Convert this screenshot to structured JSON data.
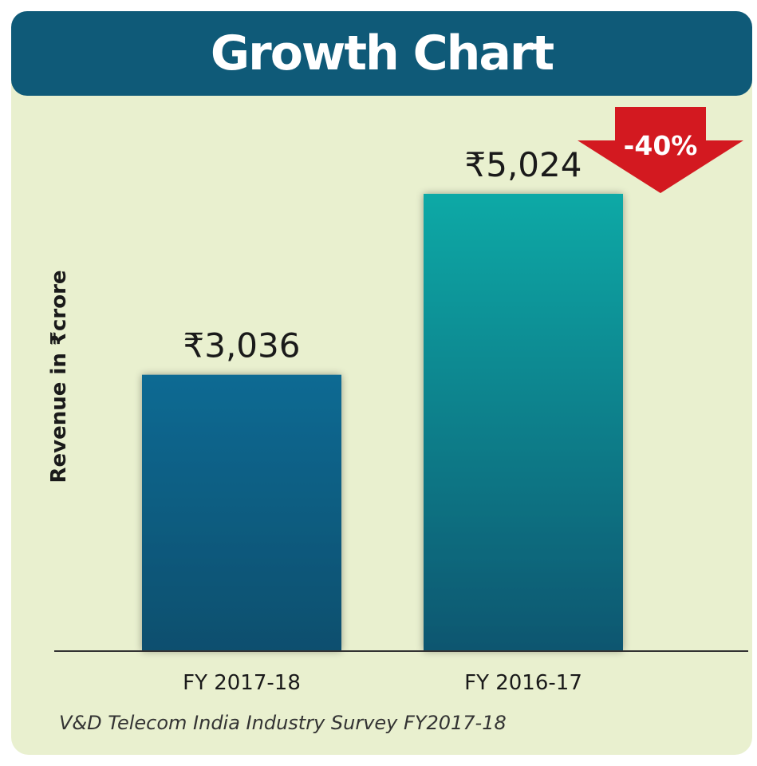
{
  "chart_data": {
    "type": "bar",
    "title": "Growth Chart",
    "ylabel": "Revenue in ₹crore",
    "categories": [
      "FY 2017-18",
      "FY 2016-17"
    ],
    "values": [
      3036,
      5024
    ],
    "data_labels": [
      "₹3,036",
      "₹5,024"
    ],
    "bar_colors": [
      "#0c6a93",
      "#0aa9a6"
    ],
    "bar_colors_bottom": [
      "#0b4f6e",
      "#0b5670"
    ],
    "ylim": [
      0,
      5400
    ],
    "grid": false,
    "legend": "none",
    "annotation": {
      "text": "-40%",
      "direction": "down",
      "color": "#d31920"
    },
    "source": "V&D Telecom India Industry Survey FY2017-18"
  }
}
